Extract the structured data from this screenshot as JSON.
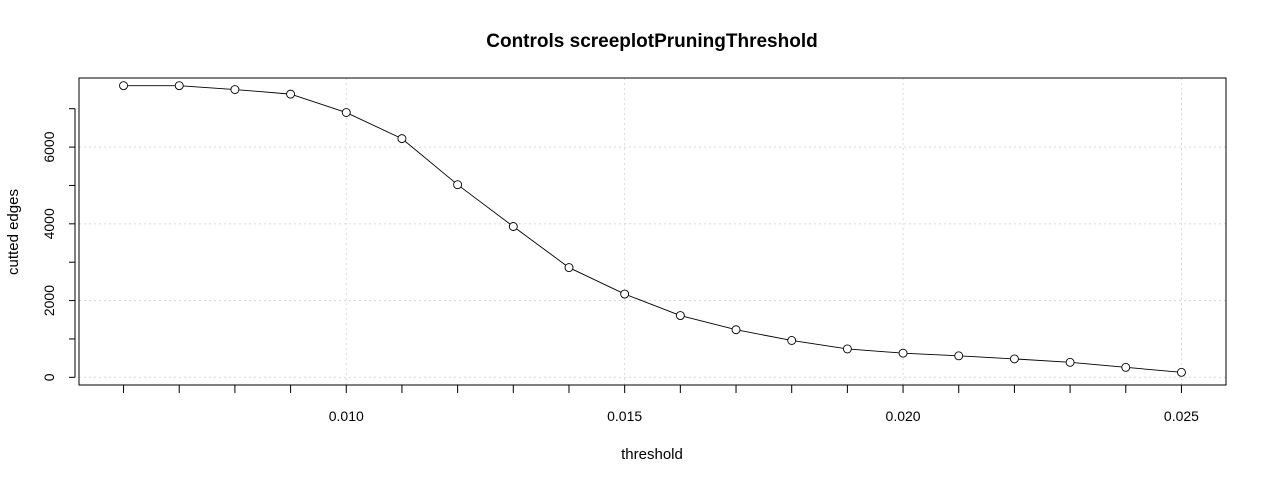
{
  "chart_data": {
    "type": "line",
    "title": "Controls screeplotPruningThreshold",
    "xlabel": "threshold",
    "ylabel": "cutted edges",
    "xlim": [
      0.0052,
      0.0258
    ],
    "ylim": [
      -200,
      7800
    ],
    "x_ticks": [
      0.01,
      0.015,
      0.02,
      0.025
    ],
    "x_tick_labels": [
      "0.010",
      "0.015",
      "0.020",
      "0.025"
    ],
    "x_minor_ticks": [
      0.006,
      0.007,
      0.008,
      0.009,
      0.01,
      0.011,
      0.012,
      0.013,
      0.014,
      0.015,
      0.016,
      0.017,
      0.018,
      0.019,
      0.02,
      0.021,
      0.022,
      0.023,
      0.024,
      0.025
    ],
    "y_ticks": [
      0,
      2000,
      4000,
      6000
    ],
    "y_tick_labels": [
      "0",
      "2000",
      "4000",
      "6000"
    ],
    "y_minor_ticks": [
      0,
      1000,
      2000,
      3000,
      4000,
      5000,
      6000,
      7000
    ],
    "grid": true,
    "series": [
      {
        "x": [
          0.006,
          0.007,
          0.008,
          0.009,
          0.01,
          0.011,
          0.012,
          0.013,
          0.014,
          0.015,
          0.016,
          0.017,
          0.018,
          0.019,
          0.02,
          0.021,
          0.022,
          0.023,
          0.024,
          0.025
        ],
        "values": [
          7600,
          7600,
          7500,
          7380,
          6900,
          6220,
          5020,
          3930,
          2860,
          2170,
          1610,
          1240,
          960,
          740,
          630,
          560,
          480,
          390,
          260,
          130
        ]
      }
    ]
  }
}
